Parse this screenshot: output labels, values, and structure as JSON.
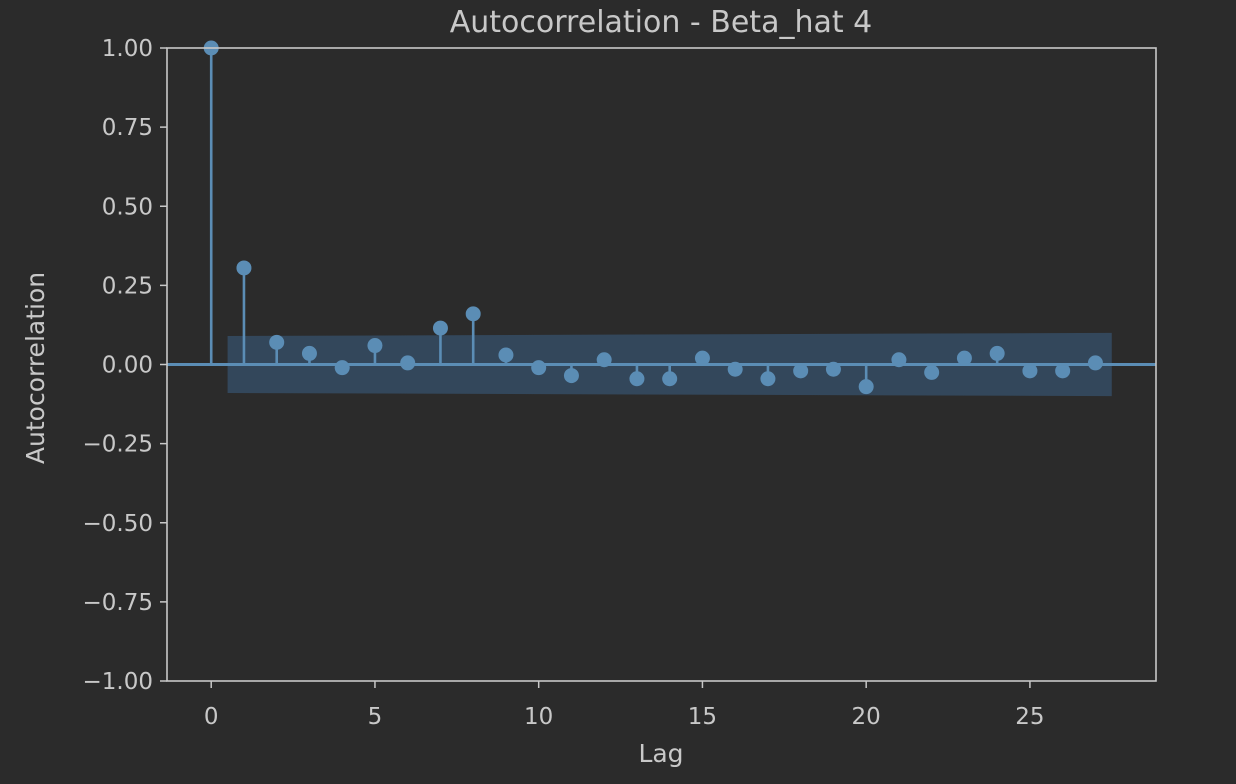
{
  "chart_data": {
    "type": "stem",
    "title": "Autocorrelation - Beta_hat 4",
    "xlabel": "Lag",
    "ylabel": "Autocorrelation",
    "xlim": [
      -1.35,
      28.85
    ],
    "ylim": [
      -1.0,
      1.0
    ],
    "x_ticks": [
      0,
      5,
      10,
      15,
      20,
      25
    ],
    "x_tick_labels": [
      "0",
      "5",
      "10",
      "15",
      "20",
      "25"
    ],
    "y_ticks": [
      1.0,
      0.75,
      0.5,
      0.25,
      0.0,
      -0.25,
      -0.5,
      -0.75,
      -1.0
    ],
    "y_tick_labels": [
      "1.00",
      "0.75",
      "0.50",
      "0.25",
      "0.00",
      "−0.25",
      "−0.50",
      "−0.75",
      "−1.00"
    ],
    "grid": false,
    "x": [
      0,
      1,
      2,
      3,
      4,
      5,
      6,
      7,
      8,
      9,
      10,
      11,
      12,
      13,
      14,
      15,
      16,
      17,
      18,
      19,
      20,
      21,
      22,
      23,
      24,
      25,
      26,
      27
    ],
    "values": [
      1.0,
      0.305,
      0.07,
      0.035,
      -0.01,
      0.06,
      0.005,
      0.115,
      0.16,
      0.03,
      -0.01,
      -0.035,
      0.015,
      -0.045,
      -0.045,
      0.02,
      -0.015,
      -0.045,
      -0.02,
      -0.015,
      -0.07,
      0.015,
      -0.025,
      0.02,
      0.035,
      -0.02,
      -0.02,
      0.005
    ],
    "confidence_band": {
      "x": [
        0.5,
        27.5
      ],
      "upper": [
        0.09,
        0.1
      ],
      "lower": [
        -0.09,
        -0.1
      ]
    },
    "colors": {
      "background": "#2b2b2b",
      "stem": "#5b8db5",
      "band": "#34495e",
      "axes": "#c8c8c8",
      "text": "#c8c8c8"
    }
  }
}
